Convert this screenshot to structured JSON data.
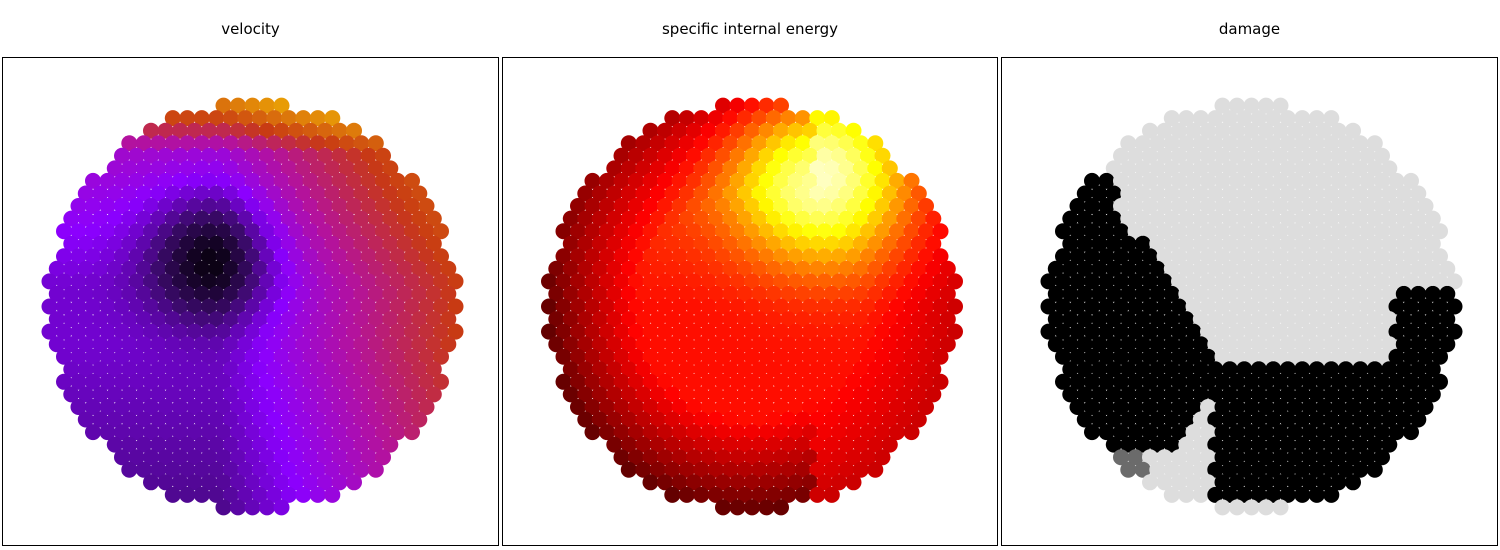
{
  "chart_data": [
    {
      "type": "scatter",
      "title": "velocity",
      "colormap": "gnuplot",
      "colormap_stops": [
        "#000000",
        "#3d0a6e",
        "#8b00ff",
        "#b4129c",
        "#c83a13",
        "#e0820a",
        "#f5c800"
      ],
      "particle_radius": 8,
      "disk_radius": 205,
      "lattice_spacing": 14.5,
      "axes_visible": false,
      "grid": false,
      "field": "velocity magnitude; dark core near upper-left centre, purple body, bright purple to right, orange/yellow at top edge"
    },
    {
      "type": "scatter",
      "title": "specific internal energy",
      "colormap": "hot",
      "colormap_stops": [
        "#000000",
        "#8b0000",
        "#ff0000",
        "#ff8000",
        "#ffff00",
        "#ffffc0"
      ],
      "particle_radius": 8,
      "disk_radius": 205,
      "lattice_spacing": 14.5,
      "axes_visible": false,
      "grid": false,
      "field": "internal energy; red body, yellow hot spot at top-right, dark rim at left and bottom"
    },
    {
      "type": "scatter",
      "title": "damage",
      "colormap": "gray_r",
      "colormap_stops": [
        "#dddddd",
        "#777777",
        "#000000"
      ],
      "particle_radius": 8,
      "disk_radius": 205,
      "lattice_spacing": 14.5,
      "axes_visible": false,
      "grid": false,
      "field": "damage 0 (light gray) to 1 (black); damaged region on left side and bottom-right"
    }
  ]
}
